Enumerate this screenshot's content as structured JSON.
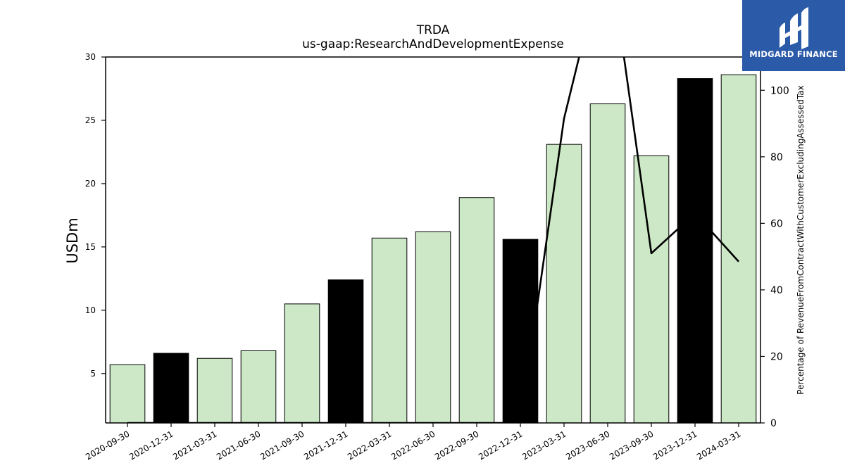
{
  "brand": {
    "name": "MIDGARD FINANCE",
    "background": "#2b5aa8"
  },
  "chart_data": {
    "type": "bar",
    "title": "TRDA",
    "subtitle": "us-gaap:ResearchAndDevelopmentExpense",
    "ylabel": "USDm",
    "y2label": "Percentage of RevenueFromContractWithCustomerExcludingAssessedTax",
    "ylim": [
      1.1,
      30
    ],
    "y2lim": [
      0,
      110
    ],
    "yticks": [
      5,
      10,
      15,
      20,
      25,
      30
    ],
    "y2ticks": [
      0,
      20,
      40,
      60,
      80,
      100
    ],
    "categories": [
      "2020-09-30",
      "2020-12-31",
      "2021-03-31",
      "2021-06-30",
      "2021-09-30",
      "2021-12-31",
      "2022-03-31",
      "2022-06-30",
      "2022-09-30",
      "2022-12-31",
      "2023-03-31",
      "2023-06-30",
      "2023-09-30",
      "2023-12-31",
      "2024-03-31"
    ],
    "series": [
      {
        "type": "bar",
        "axis": "left",
        "values": [
          5.7,
          6.6,
          6.2,
          6.8,
          10.5,
          12.4,
          15.7,
          16.2,
          18.9,
          15.6,
          23.1,
          26.3,
          22.2,
          28.3,
          28.6
        ],
        "colors": [
          "#cce8c6",
          "#000000",
          "#cce8c6",
          "#cce8c6",
          "#cce8c6",
          "#000000",
          "#cce8c6",
          "#cce8c6",
          "#cce8c6",
          "#000000",
          "#cce8c6",
          "#cce8c6",
          "#cce8c6",
          "#000000",
          "#cce8c6"
        ]
      },
      {
        "type": "line",
        "axis": "right",
        "color": "#000000",
        "values": [
          0,
          0,
          0,
          0,
          0,
          0,
          0,
          0,
          0,
          0,
          91.5,
          145,
          51,
          63,
          48.5
        ]
      }
    ],
    "grid": false
  }
}
